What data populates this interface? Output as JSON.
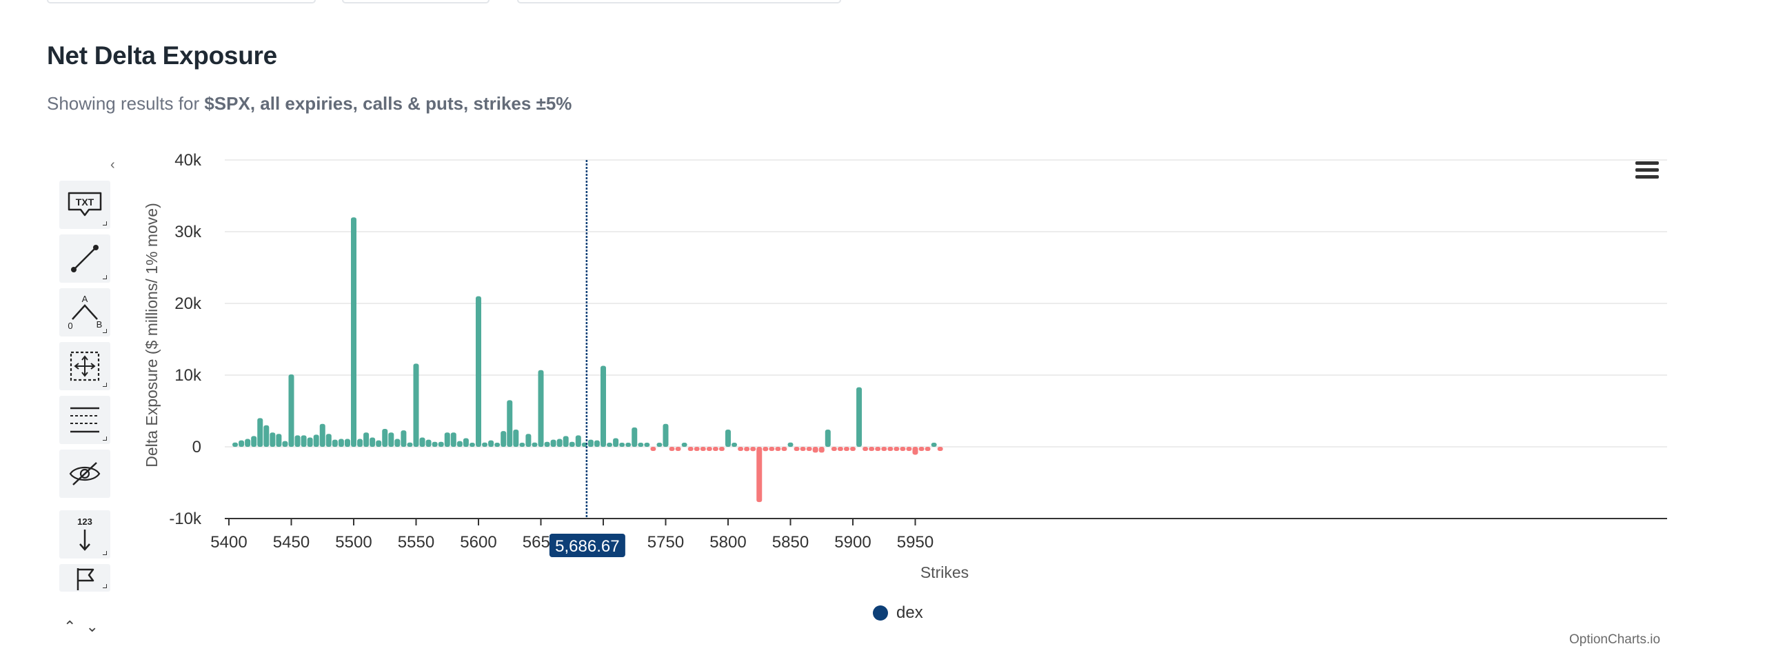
{
  "header": {
    "title": "Net Delta Exposure",
    "subtitle_prefix": "Showing results for ",
    "subtitle_bold": "$SPX, all expiries, calls & puts, strikes ±5%"
  },
  "toolbar": {
    "tools": [
      {
        "icon": "text-annotation-icon",
        "label": "TXT"
      },
      {
        "icon": "line-tool-icon"
      },
      {
        "icon": "triangle-tool-icon",
        "labels": [
          "A",
          "0",
          "B"
        ]
      },
      {
        "icon": "measure-tool-icon"
      },
      {
        "icon": "levels-tool-icon"
      },
      {
        "icon": "hide-annotations-icon"
      },
      {
        "icon": "vertical-counter-icon",
        "label": "123"
      },
      {
        "icon": "flag-icon"
      }
    ]
  },
  "menu": {
    "icon": "hamburger-menu-icon"
  },
  "credit": "OptionCharts.io",
  "colors": {
    "positive": "#4fab9a",
    "negative": "#f6797a",
    "crosshair": "#0d3f77",
    "legend": "#0d3f77"
  },
  "chart_data": {
    "type": "bar",
    "title": "Net Delta Exposure",
    "xlabel": "Strikes",
    "ylabel": "Delta Exposure ($ millions/ 1% move)",
    "xlim": [
      5400,
      5975
    ],
    "ylim": [
      -10000,
      40000
    ],
    "xticks": [
      5400,
      5450,
      5500,
      5550,
      5600,
      5650,
      5700,
      5750,
      5800,
      5850,
      5900,
      5950
    ],
    "xtick_labels": [
      "5400",
      "5450",
      "5500",
      "5550",
      "5600",
      "5650",
      "5700",
      "5750",
      "5800",
      "5850",
      "5900",
      "5950"
    ],
    "yticks": [
      -10000,
      0,
      10000,
      20000,
      30000,
      40000
    ],
    "ytick_labels": [
      "-10k",
      "0",
      "10k",
      "20k",
      "30k",
      "40k"
    ],
    "grid": true,
    "legend": {
      "position": "bottom-center",
      "series": [
        "dex"
      ]
    },
    "crosshair": {
      "x": 5686.67,
      "label": "5,686.67"
    },
    "series": [
      {
        "name": "dex",
        "x": [
          5405,
          5410,
          5415,
          5420,
          5425,
          5430,
          5435,
          5440,
          5445,
          5450,
          5455,
          5460,
          5465,
          5470,
          5475,
          5480,
          5485,
          5490,
          5495,
          5500,
          5505,
          5510,
          5515,
          5520,
          5525,
          5530,
          5535,
          5540,
          5545,
          5550,
          5555,
          5560,
          5565,
          5570,
          5575,
          5580,
          5585,
          5590,
          5595,
          5600,
          5605,
          5610,
          5615,
          5620,
          5625,
          5630,
          5635,
          5640,
          5645,
          5650,
          5655,
          5660,
          5665,
          5670,
          5675,
          5680,
          5685,
          5690,
          5695,
          5700,
          5705,
          5710,
          5715,
          5720,
          5725,
          5730,
          5735,
          5740,
          5745,
          5750,
          5755,
          5760,
          5765,
          5770,
          5775,
          5780,
          5785,
          5790,
          5795,
          5800,
          5805,
          5810,
          5815,
          5820,
          5825,
          5830,
          5835,
          5840,
          5845,
          5850,
          5855,
          5860,
          5865,
          5870,
          5875,
          5880,
          5885,
          5890,
          5895,
          5900,
          5905,
          5910,
          5915,
          5920,
          5925,
          5930,
          5935,
          5940,
          5945,
          5950,
          5955,
          5960,
          5965,
          5970
        ],
        "values": [
          600,
          900,
          1100,
          1500,
          4000,
          3000,
          2000,
          1800,
          800,
          10100,
          1600,
          1600,
          1300,
          1700,
          3200,
          1800,
          1000,
          1100,
          1100,
          32000,
          1100,
          2000,
          1300,
          900,
          2500,
          2000,
          1100,
          2300,
          600,
          11600,
          1300,
          1000,
          700,
          700,
          2000,
          2000,
          800,
          1200,
          500,
          21000,
          600,
          900,
          400,
          2200,
          6500,
          2400,
          200,
          1800,
          600,
          10700,
          700,
          1000,
          1100,
          1500,
          700,
          1600,
          600,
          1000,
          900,
          11300,
          400,
          1200,
          300,
          200,
          2700,
          400,
          300,
          -100,
          300,
          3200,
          -200,
          -100,
          500,
          -200,
          -300,
          -200,
          -500,
          -100,
          -400,
          2400,
          300,
          -200,
          -600,
          -600,
          -7700,
          -600,
          -200,
          -500,
          -400,
          600,
          -100,
          -200,
          -300,
          -800,
          -800,
          2400,
          -100,
          -300,
          -100,
          -200,
          8300,
          -100,
          -200,
          -300,
          -100,
          -400,
          -100,
          -300,
          -200,
          -1100,
          -100,
          -300,
          300,
          -200
        ]
      }
    ]
  }
}
